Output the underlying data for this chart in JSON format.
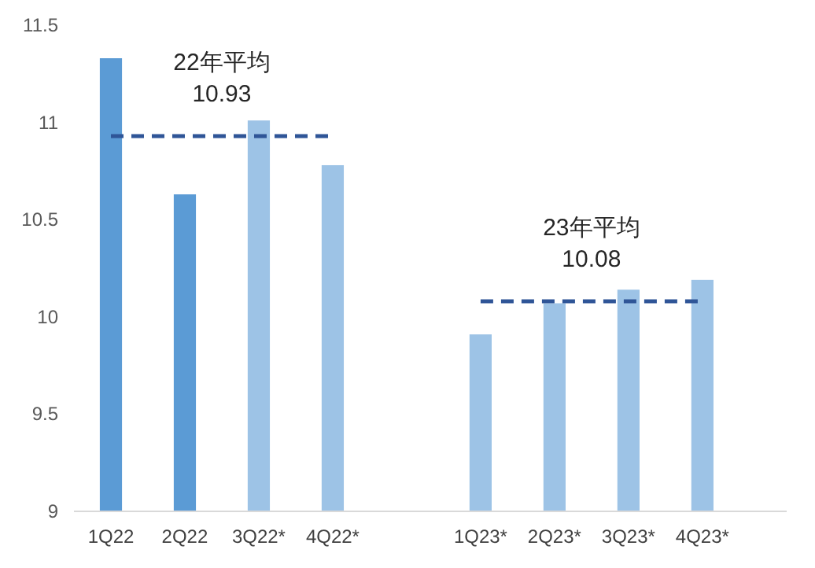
{
  "chart_data": {
    "type": "bar",
    "categories": [
      "1Q22",
      "2Q22",
      "3Q22*",
      "4Q22*",
      null,
      "1Q23*",
      "2Q23*",
      "3Q23*",
      "4Q23*"
    ],
    "series": [
      {
        "values": [
          11.33,
          10.63,
          11.01,
          10.78,
          null,
          9.91,
          10.07,
          10.14,
          10.19
        ],
        "colors": [
          "#5b9bd5",
          "#5b9bd5",
          "#9dc3e6",
          "#9dc3e6",
          null,
          "#9dc3e6",
          "#9dc3e6",
          "#9dc3e6",
          "#9dc3e6"
        ]
      },
      {
        "type": "line",
        "color": "#2f5597",
        "line_style": "dashed",
        "values": [
          10.93,
          10.93,
          10.93,
          10.93,
          null,
          null,
          null,
          null,
          null
        ]
      },
      {
        "type": "line",
        "color": "#2f5597",
        "line_style": "dashed",
        "values": [
          null,
          null,
          null,
          null,
          null,
          10.08,
          10.08,
          10.08,
          10.08
        ]
      }
    ],
    "ylim": [
      9,
      11.5
    ],
    "yticks": [
      9,
      9.5,
      10,
      10.5,
      11,
      11.5
    ],
    "grid": false,
    "annotations": [
      {
        "text": "22年平均\n10.93",
        "x": "2Q22",
        "y": 10.93
      },
      {
        "text": "23年平均\n10.08",
        "x": "2Q23*",
        "y": 10.08
      }
    ]
  }
}
